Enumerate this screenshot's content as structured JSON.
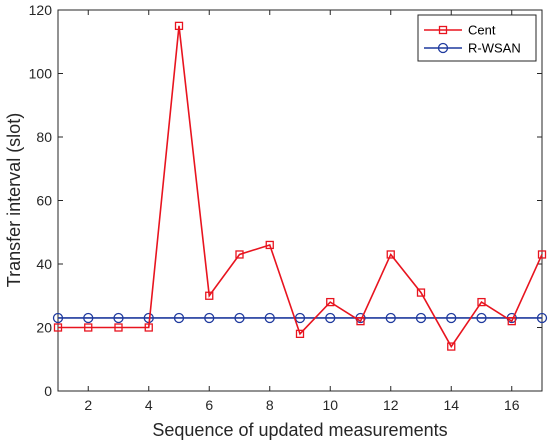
{
  "chart_data": {
    "type": "line",
    "title": "",
    "xlabel": "Sequence of updated measurements",
    "ylabel": "Transfer interval (slot)",
    "xlim": [
      1,
      17
    ],
    "ylim": [
      0,
      120
    ],
    "xticks": [
      2,
      4,
      6,
      8,
      10,
      12,
      14,
      16
    ],
    "yticks": [
      0,
      20,
      40,
      60,
      80,
      100,
      120
    ],
    "grid": false,
    "legend_position": "top-right",
    "x": [
      1,
      2,
      3,
      4,
      5,
      6,
      7,
      8,
      9,
      10,
      11,
      12,
      13,
      14,
      15,
      16,
      17
    ],
    "series": [
      {
        "name": "Cent",
        "color": "#e8141f",
        "marker": "square",
        "values": [
          20,
          20,
          20,
          20,
          115,
          30,
          43,
          46,
          18,
          28,
          22,
          43,
          31,
          14,
          28,
          22,
          43
        ]
      },
      {
        "name": "R-WSAN",
        "color": "#1f3a9e",
        "marker": "circle",
        "values": [
          23,
          23,
          23,
          23,
          23,
          23,
          23,
          23,
          23,
          23,
          23,
          23,
          23,
          23,
          23,
          23,
          23
        ]
      }
    ]
  }
}
